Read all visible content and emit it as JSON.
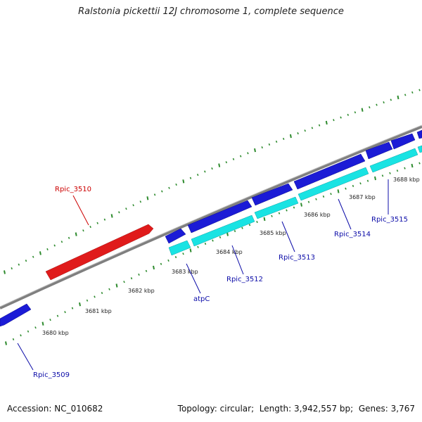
{
  "title": "Ralstonia pickettii 12J chromosome 1, complete sequence",
  "footer": {
    "accession_label": "Accession:",
    "accession": "NC_010682",
    "topology_label": "Topology:",
    "topology": "circular",
    "length_label": "Length:",
    "length": "3,942,557 bp",
    "genes_label": "Genes:",
    "genes": "3,767"
  },
  "colors": {
    "backbone": "#7f7f7f",
    "tick": "#2e8b2e",
    "gene_forward": "#1b1bd6",
    "gene_reverse_highlight": "#e01b1b",
    "gene_cyan": "#19e3e3",
    "label_blue": "#0c0ca8",
    "label_red": "#cc0000"
  },
  "scale_labels": [
    "3680 kbp",
    "3681 kbp",
    "3682 kbp",
    "3683 kbp",
    "3684 kbp",
    "3685 kbp",
    "3686 kbp",
    "3687 kbp",
    "3688 kbp"
  ],
  "genes": [
    {
      "name": "Rpic_3509",
      "strand": "outer",
      "color": "gene_forward",
      "label_color": "label_blue"
    },
    {
      "name": "Rpic_3510",
      "strand": "inner",
      "color": "gene_reverse_highlight",
      "label_color": "label_red"
    },
    {
      "name": "atpC",
      "strand": "outer",
      "color": "gene_forward",
      "label_color": "label_blue"
    },
    {
      "name": "Rpic_3512",
      "strand": "outer",
      "color": "gene_forward",
      "label_color": "label_blue"
    },
    {
      "name": "Rpic_3513",
      "strand": "outer",
      "color": "gene_forward",
      "label_color": "label_blue"
    },
    {
      "name": "Rpic_3514",
      "strand": "outer",
      "color": "gene_forward",
      "label_color": "label_blue"
    },
    {
      "name": "Rpic_3515",
      "strand": "outer",
      "color": "gene_forward",
      "label_color": "label_blue"
    }
  ]
}
